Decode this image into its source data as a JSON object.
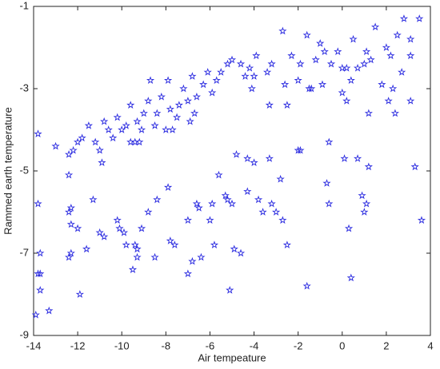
{
  "chart_data": {
    "type": "scatter",
    "x_label": "Air tempeature",
    "y_label": "Rammed earth temperature",
    "color": "#2a2ae0",
    "xlim": [
      -14,
      4
    ],
    "xticks": [
      -14,
      -12,
      -10,
      -8,
      -6,
      -4,
      -2,
      0,
      2,
      4
    ],
    "ylim": [
      -9,
      -1
    ],
    "yticks": [
      -9,
      -7,
      -5,
      -3,
      -1
    ],
    "x": [
      3.5,
      2.8,
      2.5,
      1.5,
      2.0,
      3.1,
      2.2,
      3.1,
      2.7,
      0.5,
      1.1,
      1.3,
      1.0,
      0.7,
      -0.2,
      0,
      0.2,
      0.4,
      -0.5,
      -0.8,
      -1.0,
      -1.2,
      -1.6,
      -1.9,
      -2.0,
      -2.3,
      -2.7,
      -2.6,
      -3.2,
      -3.4,
      -3.9,
      -4.0,
      -4.2,
      -4.4,
      -4.6,
      -5.0,
      -5.2,
      -5.5,
      -5.7,
      -5.9,
      -6.1,
      -6.3,
      -6.6,
      -6.8,
      -7.0,
      -7.2,
      -7.4,
      -7.5,
      -7.8,
      -7.9,
      -8.2,
      -8.4,
      -8.5,
      -8.7,
      -8.8,
      -9.0,
      -9.1,
      -9.3,
      -9.4,
      -9.6,
      -9.8,
      -10.0,
      -10.2,
      -10.4,
      -10.6,
      -10.8,
      -11.0,
      -11.2,
      -11.5,
      -11.8,
      -12.0,
      -12.2,
      -12.4,
      -13.0,
      -13.8,
      -10.9,
      -9.6,
      -9.2,
      -8.0,
      -7.7,
      -6.7,
      -6.9,
      -4.1,
      -3.3,
      -2.5,
      -1.5,
      -0.9,
      0.0,
      1.8,
      2.3,
      2.1,
      3.1,
      2.4,
      1.2,
      0.2,
      -1.4,
      -13.9,
      -13.3,
      -13.7,
      -13.7,
      -13.8,
      -13.7,
      -13.8,
      -12.4,
      -12.4,
      -12.3,
      -12.3,
      -12.3,
      -12.4,
      -12.0,
      -11.9,
      -11.6,
      -11.3,
      -11.0,
      -10.8,
      -10.2,
      -10.1,
      -9.9,
      -9.8,
      -9.5,
      -9.4,
      -9.3,
      -9.3,
      -9.1,
      -8.8,
      -8.4,
      -8.5,
      -7.9,
      -7.8,
      -7.6,
      -7.0,
      -6.8,
      -6.6,
      -6.5,
      -6.4,
      -6.0,
      -5.9,
      -5.6,
      -5.8,
      -5.3,
      -5.2,
      -5.0,
      -4.9,
      -4.6,
      -4.3,
      -4.0,
      -4.3,
      -3.8,
      -3.6,
      -3.2,
      -3.0,
      -2.7,
      -2.5,
      -3.3,
      -2.8,
      -1.9,
      -1.6,
      -0.7,
      -0.6,
      -0.6,
      0.1,
      0.3,
      0.4,
      0.7,
      0.9,
      1.1,
      1.2,
      1.0,
      3.3,
      3.6,
      -5.1,
      -7.0,
      -4.8,
      -2.0
    ],
    "values": [
      -1.3,
      -1.3,
      -1.7,
      -1.5,
      -2.0,
      -1.8,
      -2.2,
      -2.2,
      -2.6,
      -1.8,
      -2.1,
      -2.3,
      -2.4,
      -2.5,
      -2.1,
      -2.5,
      -2.5,
      -2.8,
      -2.4,
      -2.1,
      -1.9,
      -2.3,
      -1.7,
      -2.4,
      -2.8,
      -2.2,
      -1.6,
      -2.9,
      -2.4,
      -2.6,
      -2.2,
      -2.7,
      -2.5,
      -2.7,
      -2.4,
      -2.3,
      -2.4,
      -2.6,
      -2.8,
      -3.1,
      -2.6,
      -2.9,
      -3.2,
      -2.7,
      -3.3,
      -3.0,
      -3.4,
      -3.7,
      -3.5,
      -2.8,
      -3.2,
      -3.6,
      -3.9,
      -2.8,
      -3.3,
      -3.6,
      -4.0,
      -3.8,
      -4.3,
      -3.4,
      -3.9,
      -4.0,
      -3.7,
      -4.2,
      -4.0,
      -3.8,
      -4.5,
      -4.3,
      -3.9,
      -4.2,
      -4.3,
      -4.5,
      -4.6,
      -4.4,
      -4.1,
      -4.8,
      -4.3,
      -4.3,
      -4.0,
      -4.0,
      -3.6,
      -3.8,
      -3.0,
      -3.4,
      -3.4,
      -3.0,
      -2.9,
      -3.1,
      -2.9,
      -3.0,
      -3.3,
      -3.3,
      -3.6,
      -3.6,
      -3.3,
      -3.0,
      -8.5,
      -8.4,
      -7.9,
      -7.5,
      -7.5,
      -7.0,
      -5.8,
      -5.1,
      -6.0,
      -5.9,
      -6.3,
      -7.0,
      -7.1,
      -6.4,
      -8.0,
      -6.9,
      -5.7,
      -6.5,
      -6.6,
      -6.2,
      -6.4,
      -6.5,
      -6.8,
      -7.4,
      -6.8,
      -6.9,
      -7.1,
      -6.4,
      -6.0,
      -5.7,
      -7.1,
      -5.4,
      -6.7,
      -6.8,
      -7.5,
      -7.2,
      -5.8,
      -5.9,
      -7.1,
      -6.2,
      -5.8,
      -5.1,
      -6.8,
      -5.6,
      -5.7,
      -5.8,
      -6.9,
      -7.0,
      -4.7,
      -4.8,
      -5.5,
      -5.7,
      -6.0,
      -5.8,
      -6.0,
      -6.2,
      -6.8,
      -4.7,
      -5.2,
      -4.5,
      -7.8,
      -5.3,
      -4.3,
      -5.8,
      -4.7,
      -6.4,
      -7.6,
      -4.7,
      -5.6,
      -5.8,
      -4.9,
      -6.0,
      -4.9,
      -6.2,
      -7.9,
      -6.2,
      -4.6,
      -4.5
    ]
  }
}
